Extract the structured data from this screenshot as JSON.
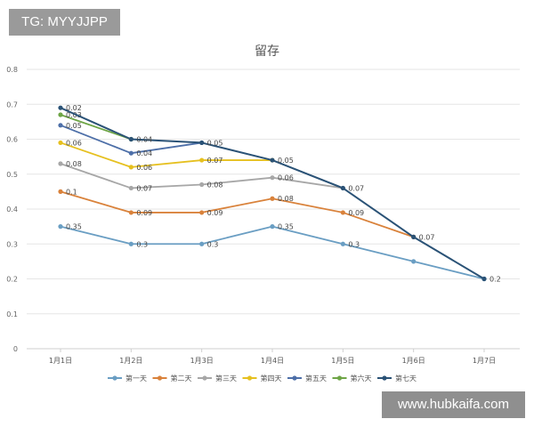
{
  "watermarks": {
    "top": "TG: MYYJJPP",
    "bottom": "www.hubkaifa.com"
  },
  "chart_data": {
    "type": "line",
    "title": "留存",
    "xlabel": "",
    "ylabel": "",
    "ylim": [
      0,
      0.8
    ],
    "yticks": [
      "0",
      "0.1",
      "0.2",
      "0.3",
      "0.4",
      "0.5",
      "0.6",
      "0.7",
      "0.8"
    ],
    "categories": [
      "1月1日",
      "1月2日",
      "1月3日",
      "1月4日",
      "1月5日",
      "1月6日",
      "1月7日"
    ],
    "grid": true,
    "legend_position": "bottom",
    "series": [
      {
        "name": "第一天",
        "color": "#6a9ec3",
        "values": [
          0.35,
          0.3,
          0.3,
          0.35,
          0.3,
          0.25,
          0.2
        ],
        "labels": [
          "0.35",
          "0.3",
          "0.3",
          "0.35",
          "0.3",
          "",
          ""
        ]
      },
      {
        "name": "第二天",
        "color": "#d9823b",
        "values": [
          0.45,
          0.39,
          0.39,
          0.43,
          0.39,
          0.32,
          null
        ],
        "labels": [
          "0.1",
          "0.09",
          "0.09",
          "0.08",
          "0.09",
          "",
          ""
        ]
      },
      {
        "name": "第三天",
        "color": "#a7a7a7",
        "values": [
          0.53,
          0.46,
          0.47,
          0.49,
          0.46,
          null,
          null
        ],
        "labels": [
          "0.08",
          "0.07",
          "0.08",
          "0.06",
          "",
          "",
          ""
        ]
      },
      {
        "name": "第四天",
        "color": "#e6c01f",
        "values": [
          0.59,
          0.52,
          0.54,
          0.54,
          null,
          null,
          null
        ],
        "labels": [
          "0.06",
          "0.06",
          "0.07",
          "",
          "",
          "",
          ""
        ]
      },
      {
        "name": "第五天",
        "color": "#4d6fa8",
        "values": [
          0.64,
          0.56,
          0.59,
          null,
          null,
          null,
          null
        ],
        "labels": [
          "0.05",
          "0.04",
          "",
          "",
          "",
          "",
          ""
        ]
      },
      {
        "name": "第六天",
        "color": "#6ea546",
        "values": [
          0.67,
          0.6,
          null,
          null,
          null,
          null,
          null
        ],
        "labels": [
          "0.03",
          "",
          "",
          "",
          "",
          "",
          ""
        ]
      },
      {
        "name": "第七天",
        "color": "#2a5276",
        "values": [
          0.69,
          0.6,
          0.59,
          0.54,
          0.46,
          0.32,
          0.2
        ],
        "labels": [
          "0.02",
          "0.04",
          "0.05",
          "0.05",
          "0.07",
          "0.07",
          "0.2"
        ]
      }
    ]
  }
}
